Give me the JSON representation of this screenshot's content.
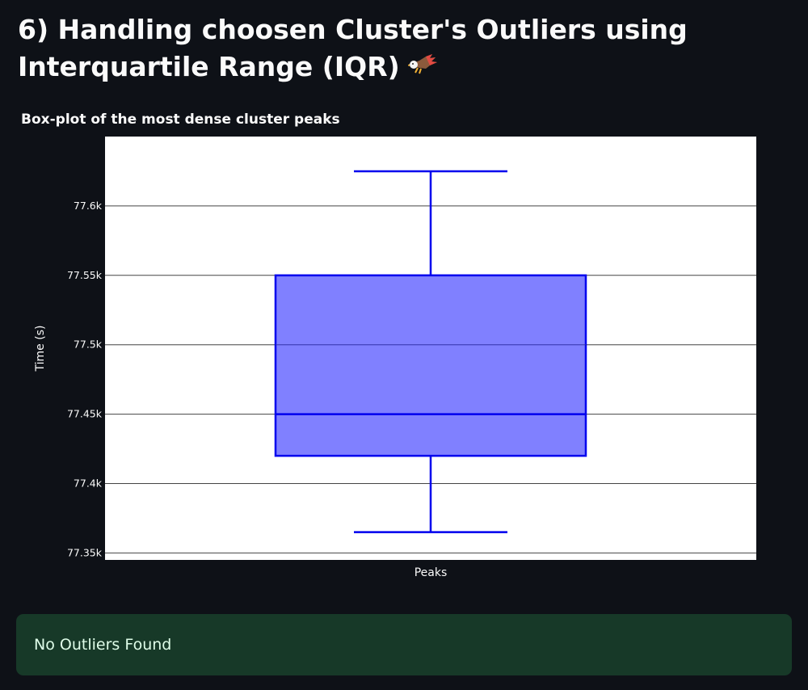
{
  "header": {
    "title": "6) Handling choosen Cluster's Outliers using Interquartile Range (IQR)",
    "icon": "eagle-icon"
  },
  "chart_data": {
    "type": "box",
    "title": "Box-plot of the most dense cluster peaks",
    "xlabel": "",
    "ylabel": "Time (s)",
    "categories": [
      "Peaks"
    ],
    "box": {
      "whisker_low": 77365,
      "q1": 77420,
      "median": 77450,
      "q3": 77550,
      "whisker_high": 77625
    },
    "ylim": [
      77345,
      77650
    ],
    "yticks": [
      77350,
      77400,
      77450,
      77500,
      77550,
      77600
    ],
    "ytick_labels": [
      "77.35k",
      "77.4k",
      "77.45k",
      "77.5k",
      "77.55k",
      "77.6k"
    ],
    "grid": true,
    "legend": "none",
    "colors": {
      "box_fill": "#8080ff",
      "box_line": "#0000ee",
      "plot_bg": "#ffffff",
      "gridline": "#444444"
    }
  },
  "alert": {
    "text": "No Outliers Found",
    "background": "#173928",
    "text_color": "#dffde9"
  }
}
